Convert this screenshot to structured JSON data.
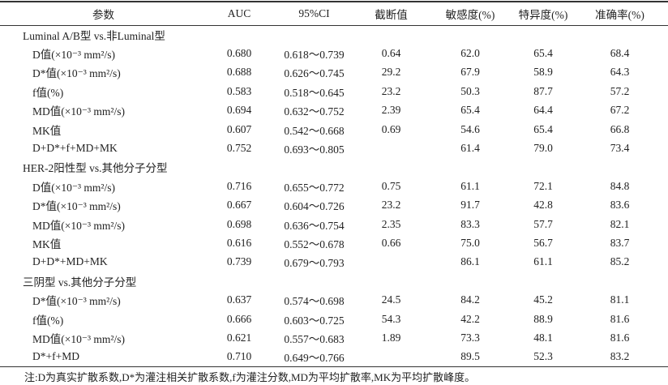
{
  "table": {
    "header": [
      "参数",
      "AUC",
      "95%CI",
      "截断值",
      "敏感度(%)",
      "特异度(%)",
      "准确率(%)"
    ],
    "groups": [
      {
        "title": "Luminal A/B型 vs.非Luminal型",
        "rows": [
          [
            "D值(×10⁻³ mm²/s)",
            "0.680",
            "0.618～0.739",
            "0.64",
            "62.0",
            "65.4",
            "68.4"
          ],
          [
            "D*值(×10⁻³ mm²/s)",
            "0.688",
            "0.626～0.745",
            "29.2",
            "67.9",
            "58.9",
            "64.3"
          ],
          [
            "f值(%)",
            "0.583",
            "0.518～0.645",
            "23.2",
            "50.3",
            "87.7",
            "57.2"
          ],
          [
            "MD值(×10⁻³ mm²/s)",
            "0.694",
            "0.632～0.752",
            "2.39",
            "65.4",
            "64.4",
            "67.2"
          ],
          [
            "MK值",
            "0.607",
            "0.542～0.668",
            "0.69",
            "54.6",
            "65.4",
            "66.8"
          ],
          [
            "D+D*+f+MD+MK",
            "0.752",
            "0.693～0.805",
            null,
            "61.4",
            "79.0",
            "73.4"
          ]
        ]
      },
      {
        "title": "HER-2阳性型 vs.其他分子分型",
        "rows": [
          [
            "D值(×10⁻³ mm²/s)",
            "0.716",
            "0.655～0.772",
            "0.75",
            "61.1",
            "72.1",
            "84.8"
          ],
          [
            "D*值(×10⁻³ mm²/s)",
            "0.667",
            "0.604～0.726",
            "23.2",
            "91.7",
            "42.8",
            "83.6"
          ],
          [
            "MD值(×10⁻³ mm²/s)",
            "0.698",
            "0.636～0.754",
            "2.35",
            "83.3",
            "57.7",
            "82.1"
          ],
          [
            "MK值",
            "0.616",
            "0.552～0.678",
            "0.66",
            "75.0",
            "56.7",
            "83.7"
          ],
          [
            "D+D*+MD+MK",
            "0.739",
            "0.679～0.793",
            null,
            "86.1",
            "61.1",
            "85.2"
          ]
        ]
      },
      {
        "title": "三阴型 vs.其他分子分型",
        "rows": [
          [
            "D*值(×10⁻³ mm²/s)",
            "0.637",
            "0.574～0.698",
            "24.5",
            "84.2",
            "45.2",
            "81.1"
          ],
          [
            "f值(%)",
            "0.666",
            "0.603～0.725",
            "54.3",
            "42.2",
            "88.9",
            "81.6"
          ],
          [
            "MD值(×10⁻³ mm²/s)",
            "0.621",
            "0.557～0.683",
            "1.89",
            "73.3",
            "48.1",
            "81.6"
          ],
          [
            "D*+f+MD",
            "0.710",
            "0.649～0.766",
            null,
            "89.5",
            "52.3",
            "83.2"
          ]
        ]
      }
    ],
    "note": "注:D为真实扩散系数,D*为灌注相关扩散系数,f为灌注分数,MD为平均扩散率,MK为平均扩散峰度。"
  }
}
